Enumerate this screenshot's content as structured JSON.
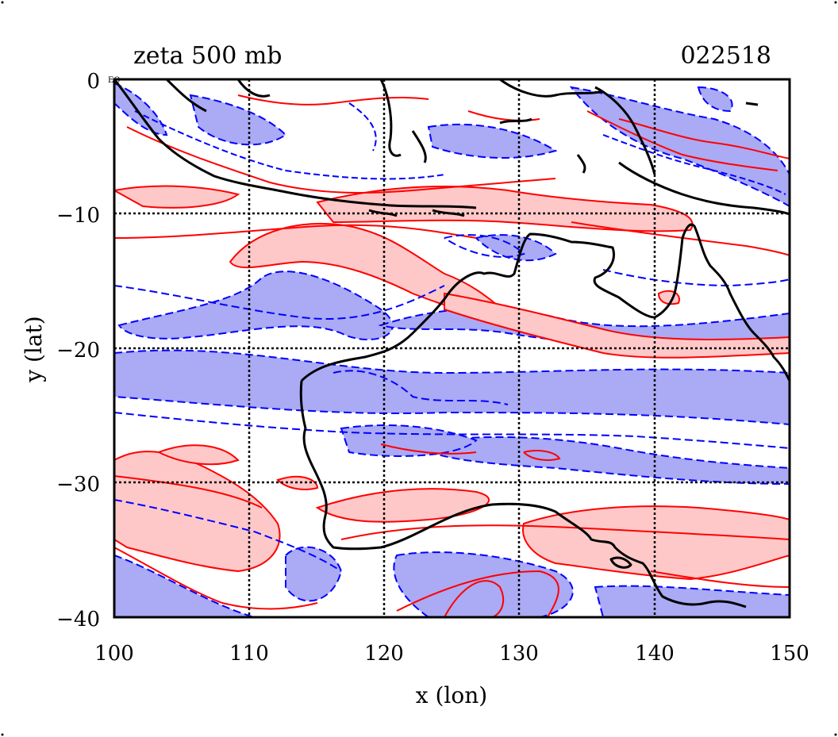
{
  "title_left": "zeta 500 mb",
  "title_right": "022518",
  "corner_label": "EQ",
  "x_axis": {
    "label": "x (lon)",
    "ticks": [
      "100",
      "110",
      "120",
      "130",
      "140",
      "150"
    ],
    "range": [
      100,
      150
    ]
  },
  "y_axis": {
    "label": "y (lat)",
    "ticks": [
      "0",
      "−10",
      "−20",
      "−30",
      "−40"
    ],
    "range": [
      -40,
      0
    ]
  },
  "grid": true,
  "colors": {
    "positive_line": "#ff0000",
    "positive_fill": "#ffc8c8",
    "negative_line": "#0000ff",
    "negative_fill": "#aaaaf5",
    "coastline": "#000000"
  }
}
